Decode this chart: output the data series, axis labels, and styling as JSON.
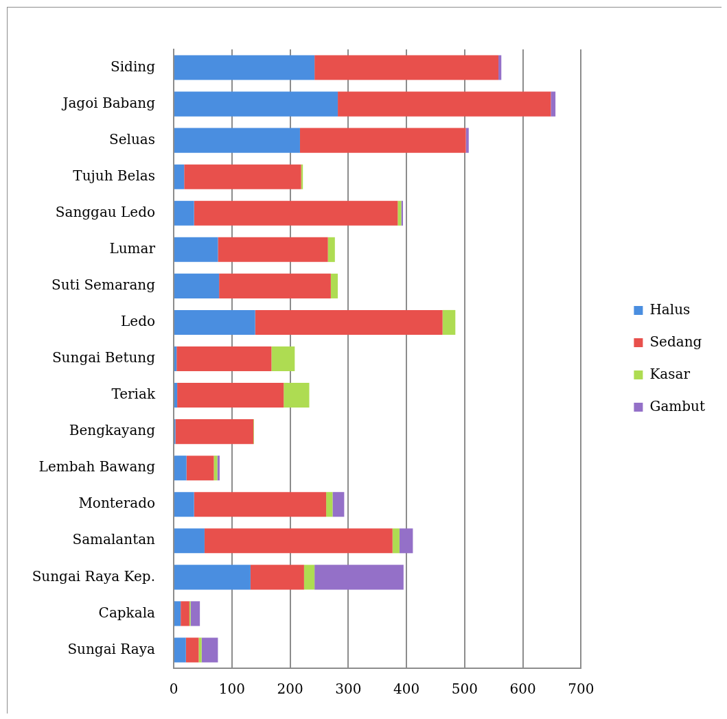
{
  "chart_data": {
    "type": "bar",
    "orientation": "horizontal",
    "stacked": true,
    "categories": [
      "Siding",
      "Jagoi Babang",
      "Seluas",
      "Tujuh Belas",
      "Sanggau Ledo",
      "Lumar",
      "Suti Semarang",
      "Ledo",
      "Sungai Betung",
      "Teriak",
      "Bengkayang",
      "Lembah Bawang",
      "Monterado",
      "Samalantan",
      "Sungai Raya Kep.",
      "Capkala",
      "Sungai Raya"
    ],
    "series": [
      {
        "name": "Halus",
        "color": "#4a8ee0",
        "values": [
          242,
          282,
          217,
          18,
          35,
          76,
          78,
          140,
          5,
          6,
          3,
          22,
          35,
          53,
          132,
          12,
          21
        ]
      },
      {
        "name": "Sedang",
        "color": "#e8504c",
        "values": [
          316,
          366,
          285,
          201,
          350,
          189,
          192,
          322,
          163,
          183,
          134,
          47,
          227,
          323,
          92,
          15,
          22
        ]
      },
      {
        "name": "Kasar",
        "color": "#aedc52",
        "values": [
          0,
          0,
          0,
          3,
          6,
          12,
          12,
          22,
          40,
          44,
          1,
          6,
          11,
          12,
          18,
          2,
          5
        ]
      },
      {
        "name": "Gambut",
        "color": "#9470c8",
        "values": [
          5,
          8,
          5,
          0,
          3,
          0,
          0,
          0,
          0,
          0,
          0,
          4,
          20,
          23,
          153,
          16,
          28
        ]
      }
    ],
    "xlim": [
      0,
      700
    ],
    "xticks": [
      0,
      100,
      200,
      300,
      400,
      500,
      600,
      700
    ],
    "grid": "x",
    "legend": "right"
  }
}
